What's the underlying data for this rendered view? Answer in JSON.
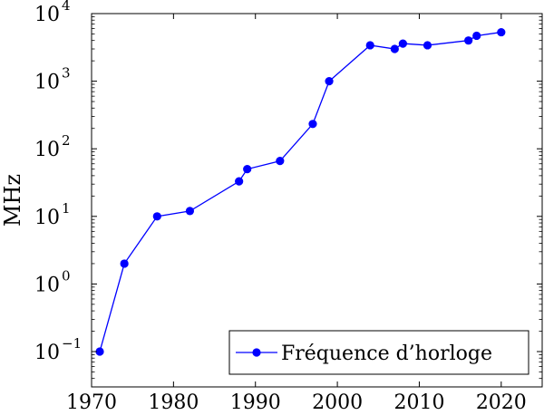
{
  "chart_data": {
    "type": "line",
    "title": "",
    "xlabel": "",
    "ylabel": "MHz",
    "y_scale": "log",
    "xlim": [
      1970,
      2025
    ],
    "ylim": [
      0.03,
      10000
    ],
    "x_ticks": [
      1970,
      1980,
      1990,
      2000,
      2010,
      2020
    ],
    "y_ticks": [
      {
        "value": 0.1,
        "base": "10",
        "exp": "−1"
      },
      {
        "value": 1,
        "base": "10",
        "exp": "0"
      },
      {
        "value": 10,
        "base": "10",
        "exp": "1"
      },
      {
        "value": 100,
        "base": "10",
        "exp": "2"
      },
      {
        "value": 1000,
        "base": "10",
        "exp": "3"
      },
      {
        "value": 10000,
        "base": "10",
        "exp": "4"
      }
    ],
    "grid": false,
    "legend_position": "bottom-right",
    "series": [
      {
        "name": "Fréquence d’horloge",
        "color": "#0000ff",
        "marker": "circle",
        "x": [
          1971,
          1974,
          1978,
          1982,
          1988,
          1989,
          1993,
          1997,
          1999,
          2004,
          2007,
          2008,
          2011,
          2016,
          2017,
          2020
        ],
        "y": [
          0.1,
          2,
          10,
          12,
          33,
          50,
          66,
          233,
          1000,
          3400,
          3000,
          3600,
          3400,
          4000,
          4700,
          5300
        ]
      }
    ]
  }
}
